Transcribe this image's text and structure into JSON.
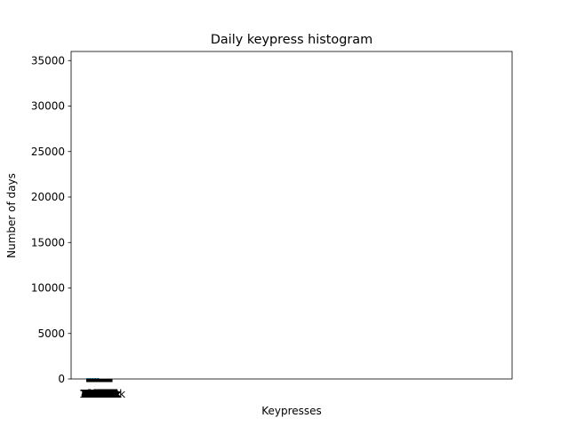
{
  "chart_data": {
    "type": "bar",
    "title": "Daily keypress histogram",
    "xlabel": "Keypresses",
    "ylabel": "Number of days",
    "ylim": [
      0,
      36000
    ],
    "xlim": [
      -0.6,
      16.5
    ],
    "grid": false,
    "y_ticks": [
      0,
      5000,
      10000,
      15000,
      20000,
      25000,
      30000,
      35000
    ],
    "y_tick_labels": [
      "0",
      "5000",
      "10000",
      "15000",
      "20000",
      "25000",
      "30000",
      "35000"
    ],
    "x_tick_labels": [
      "1k",
      "2k",
      "3k",
      "4k",
      "5k",
      "6k",
      "7k",
      "8k",
      "9k",
      "10k",
      "11k",
      "12k",
      "13k",
      "14k",
      "15k",
      "16k",
      "17k",
      "18k",
      "19k",
      "20k",
      "21k",
      "22k",
      "23k",
      "24k",
      "25k",
      "26k",
      "27k",
      "28k",
      "29k",
      "30k",
      "31k",
      "32k",
      "33k",
      "34k",
      "35k",
      "36k",
      "37k",
      "38k",
      "39k",
      "40k",
      "41k",
      "42k",
      "43k",
      "44k",
      "45k",
      "46k",
      "47k",
      "48k",
      "49k",
      "50k",
      "51k",
      "52k",
      "53k",
      "54k",
      "55k",
      "56k",
      "57k",
      "58k",
      "59k",
      "60k",
      "61k",
      "62k",
      "63k",
      "64k",
      "65k",
      "66k",
      "67k",
      "68k",
      "69k",
      "70k",
      "71k",
      "72k",
      "73k",
      "74k",
      "75k",
      "76k",
      "77k",
      "78k",
      "79k",
      "80k",
      "81k",
      "82k",
      "83k",
      "84k",
      "85k",
      "86k",
      "87k",
      "88k",
      "89k",
      "90k",
      "91k",
      "92k",
      "93k",
      "94k",
      "95k",
      "96k",
      "97k",
      "98k",
      "99k",
      "100k"
    ],
    "x_tick_positions": [
      0.0,
      0.01,
      0.02,
      0.03,
      0.04,
      0.05,
      0.06,
      0.07,
      0.08,
      0.09,
      0.1,
      0.11,
      0.12,
      0.13,
      0.14,
      0.15,
      0.16,
      0.17,
      0.18,
      0.19,
      0.2,
      0.21,
      0.22,
      0.23,
      0.24,
      0.25,
      0.26,
      0.27,
      0.28,
      0.29,
      0.3,
      0.31,
      0.32,
      0.33,
      0.34,
      0.35,
      0.36,
      0.37,
      0.38,
      0.39,
      0.4,
      0.41,
      0.42,
      0.43,
      0.44,
      0.45,
      0.46,
      0.47,
      0.48,
      0.49,
      0.5,
      0.51,
      0.52,
      0.53,
      0.54,
      0.55,
      0.56,
      0.57,
      0.58,
      0.59,
      0.6,
      0.61,
      0.62,
      0.63,
      0.64,
      0.65,
      0.66,
      0.67,
      0.68,
      0.69,
      0.7,
      0.71,
      0.72,
      0.73,
      0.74,
      0.75,
      0.76,
      0.77,
      0.78,
      0.79,
      0.8,
      0.81,
      0.82,
      0.83,
      0.84,
      0.85,
      0.86,
      0.87,
      0.88,
      0.89,
      0.9,
      0.91,
      0.92,
      0.93,
      0.94,
      0.95,
      0.96,
      0.97,
      0.98,
      0.99
    ],
    "bar_color": "#1f77b4",
    "bars": [
      {
        "x": 0.0,
        "value": 2
      },
      {
        "x": 0.1,
        "value": 1
      },
      {
        "x": 0.2,
        "value": 1
      },
      {
        "x": 0.3,
        "value": 1
      },
      {
        "x": 0.4,
        "value": 1
      }
    ],
    "bar_width": 0.08
  }
}
